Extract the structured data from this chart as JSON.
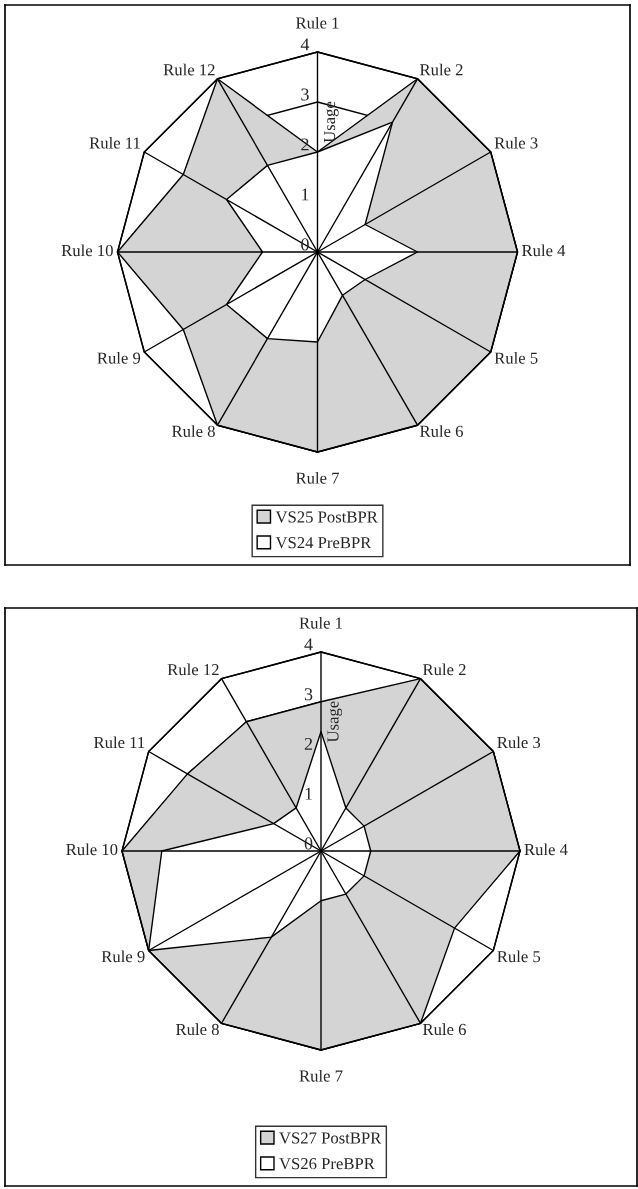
{
  "chart_data": [
    {
      "type": "radar",
      "ylabel": "Usage",
      "categories": [
        "Rule 1",
        "Rule 2",
        "Rule 3",
        "Rule 4",
        "Rule 5",
        "Rule 6",
        "Rule 7",
        "Rule 8",
        "Rule 9",
        "Rule 10",
        "Rule 11",
        "Rule 12"
      ],
      "series": [
        {
          "name": "VS25 PostBPR",
          "color": "#d4d4d4",
          "values": [
            2,
            4,
            4,
            4,
            4,
            4,
            4,
            4,
            3.1,
            4,
            3.1,
            4
          ]
        },
        {
          "name": "VS24 PreBPR",
          "color": "#ffffff",
          "values": [
            2,
            3,
            1.1,
            2,
            1.1,
            1,
            1.8,
            2,
            2.1,
            1.1,
            2.1,
            2
          ]
        }
      ],
      "ylim": [
        0,
        4
      ],
      "yticks": [
        0,
        1,
        2,
        3,
        4
      ],
      "grid": true,
      "legend": "bottom"
    },
    {
      "type": "radar",
      "ylabel": "Usage",
      "categories": [
        "Rule 1",
        "Rule 2",
        "Rule 3",
        "Rule 4",
        "Rule 5",
        "Rule 6",
        "Rule 7",
        "Rule 8",
        "Rule 9",
        "Rule 10",
        "Rule 11",
        "Rule 12"
      ],
      "series": [
        {
          "name": "VS27 PostBPR",
          "color": "#d4d4d4",
          "values": [
            3,
            4,
            4,
            4,
            3.1,
            4,
            4,
            4,
            4,
            4,
            3.1,
            3
          ]
        },
        {
          "name": "VS26 PreBPR",
          "color": "#ffffff",
          "values": [
            2.4,
            1,
            1,
            1,
            1,
            1,
            1,
            2,
            4,
            3.2,
            1.1,
            1
          ]
        }
      ],
      "ylim": [
        0,
        4
      ],
      "yticks": [
        0,
        1,
        2,
        3,
        4
      ],
      "grid": true,
      "legend": "bottom"
    }
  ]
}
